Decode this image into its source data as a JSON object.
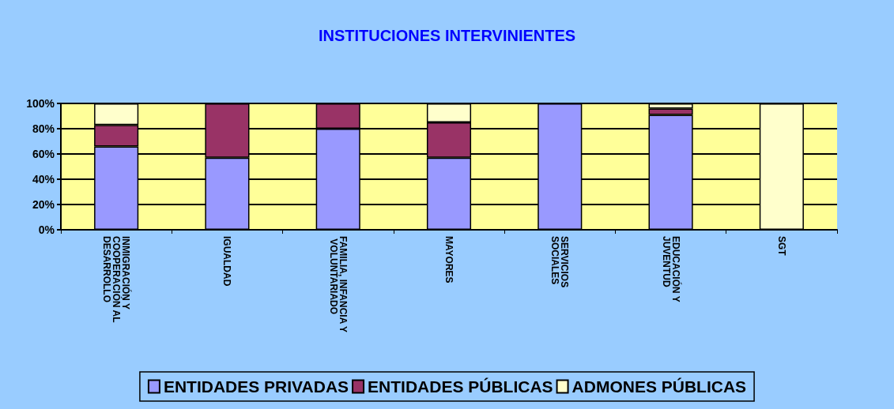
{
  "chart_data": {
    "type": "bar",
    "title": "INSTITUCIONES INTERVINIENTES",
    "stacked": true,
    "categories": [
      "INMIGRACIÓN Y COOPERACIÓN AL DESARROLLO",
      "IGUALDAD",
      "FAMILIA, INFANCIA Y VOLUNTARIADO",
      "MAYORES",
      "SERVICIOS SOCIALES",
      "EDUCACIÓN Y JUVENTUD",
      "SGT"
    ],
    "series": [
      {
        "name": "ENTIDADES PRIVADAS",
        "color": "#9999ff",
        "values": [
          66,
          57,
          80,
          57,
          100,
          91,
          0
        ]
      },
      {
        "name": "ENTIDADES PÚBLICAS",
        "color": "#993366",
        "values": [
          17,
          43,
          20,
          28,
          0,
          5,
          0
        ]
      },
      {
        "name": "ADMONES PÚBLICAS",
        "color": "#ffffcc",
        "values": [
          17,
          0,
          0,
          15,
          0,
          4,
          100
        ]
      }
    ],
    "ylim": [
      0,
      100
    ],
    "yticks": [
      {
        "value": 0,
        "label": "0%"
      },
      {
        "value": 20,
        "label": "20%"
      },
      {
        "value": 40,
        "label": "40%"
      },
      {
        "value": 60,
        "label": "60%"
      },
      {
        "value": 80,
        "label": "80%"
      },
      {
        "value": 100,
        "label": "100%"
      }
    ],
    "grid": "y",
    "legend": "bottom"
  }
}
